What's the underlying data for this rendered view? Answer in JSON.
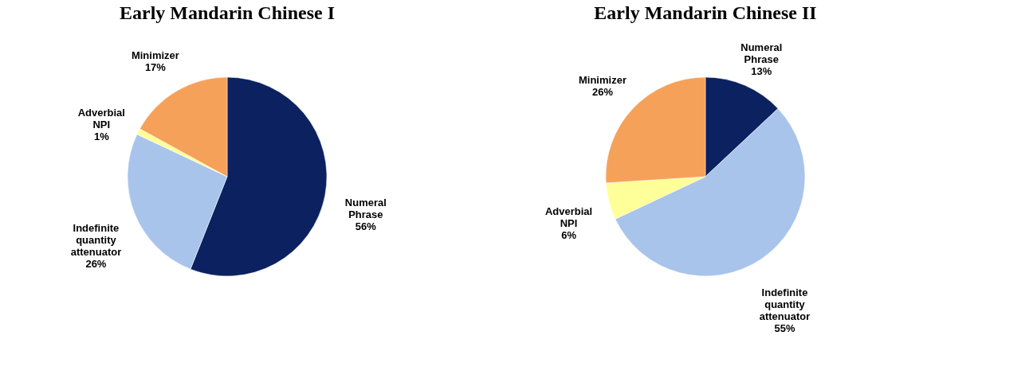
{
  "chart_data": [
    {
      "type": "pie",
      "title": "Early Mandarin Chinese I",
      "categories": [
        "Numeral Phrase",
        "Indefinite quantity attenuator",
        "Adverbial NPI",
        "Minimizer"
      ],
      "values": [
        56,
        26,
        1,
        17
      ],
      "value_labels": [
        "56%",
        "26%",
        "1%",
        "17%"
      ],
      "colors": [
        "#0b2160",
        "#a9c4eb",
        "#ffff99",
        "#f5a15a"
      ]
    },
    {
      "type": "pie",
      "title": "Early Mandarin Chinese II",
      "categories": [
        "Numeral Phrase",
        "Indefinite quantity attenuator",
        "Adverbial NPI",
        "Minimizer"
      ],
      "values": [
        13,
        55,
        6,
        26
      ],
      "value_labels": [
        "13%",
        "55%",
        "6%",
        "26%"
      ],
      "colors": [
        "#0b2160",
        "#a9c4eb",
        "#ffff99",
        "#f5a15a"
      ]
    }
  ]
}
